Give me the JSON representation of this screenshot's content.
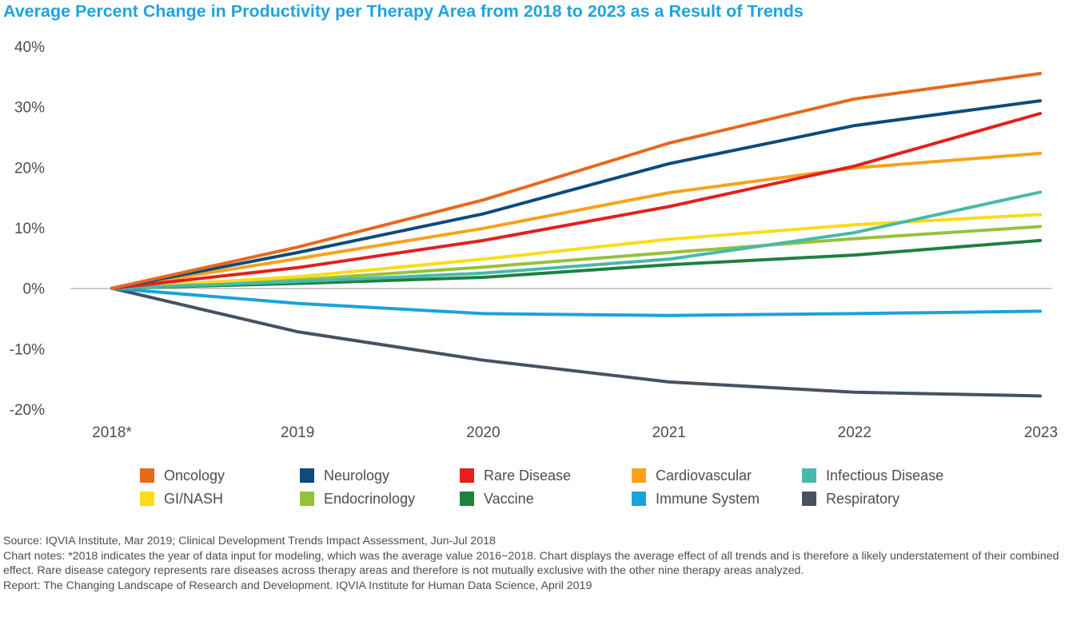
{
  "title": "Average Percent Change in Productivity per Therapy Area from 2018 to 2023 as a Result of Trends",
  "chart_data": {
    "type": "line",
    "title": "Average Percent Change in Productivity per Therapy Area from 2018 to 2023 as a Result of Trends",
    "xlabel": "",
    "ylabel": "",
    "categories": [
      "2018*",
      "2019",
      "2020",
      "2021",
      "2022",
      "2023"
    ],
    "ylim": [
      -20,
      40
    ],
    "yticks": [
      40,
      30,
      20,
      10,
      0,
      -10,
      -20
    ],
    "ytick_labels": [
      "40%",
      "30%",
      "20%",
      "10%",
      "0%",
      "-10%",
      "-20%"
    ],
    "grid": false,
    "legend_position": "bottom",
    "series": [
      {
        "name": "Oncology",
        "color": "#e8681c",
        "values": [
          0,
          6.8,
          14.6,
          24.0,
          31.3,
          35.5
        ]
      },
      {
        "name": "Neurology",
        "color": "#0e4b7b",
        "values": [
          0,
          5.9,
          12.3,
          20.6,
          26.9,
          31.0
        ]
      },
      {
        "name": "Rare Disease",
        "color": "#e3201d",
        "values": [
          0,
          3.4,
          7.9,
          13.5,
          20.2,
          28.9
        ]
      },
      {
        "name": "Cardiovascular",
        "color": "#f7a21b",
        "values": [
          0,
          4.9,
          9.9,
          15.8,
          19.9,
          22.3
        ]
      },
      {
        "name": "Infectious Disease",
        "color": "#48b9aa",
        "values": [
          0,
          1.1,
          2.5,
          4.8,
          9.2,
          15.9
        ]
      },
      {
        "name": "GI/NASH",
        "color": "#fbdc17",
        "values": [
          0,
          1.9,
          4.8,
          8.1,
          10.5,
          12.2
        ]
      },
      {
        "name": "Endocrinology",
        "color": "#96c23b",
        "values": [
          0,
          1.4,
          3.5,
          5.9,
          8.2,
          10.2
        ]
      },
      {
        "name": "Vaccine",
        "color": "#1d8140",
        "values": [
          0,
          0.8,
          1.8,
          3.9,
          5.5,
          7.9
        ]
      },
      {
        "name": "Immune System",
        "color": "#1aa2dc",
        "values": [
          0,
          -2.5,
          -4.2,
          -4.5,
          -4.2,
          -3.8
        ]
      },
      {
        "name": "Respiratory",
        "color": "#46525f",
        "values": [
          0,
          -7.2,
          -11.9,
          -15.5,
          -17.2,
          -17.8
        ]
      }
    ]
  },
  "legend": [
    {
      "label": "Oncology",
      "color": "#e8681c"
    },
    {
      "label": "Neurology",
      "color": "#0e4b7b"
    },
    {
      "label": "Rare Disease",
      "color": "#e3201d"
    },
    {
      "label": "Cardiovascular",
      "color": "#f7a21b"
    },
    {
      "label": "Infectious Disease",
      "color": "#48b9aa"
    },
    {
      "label": "GI/NASH",
      "color": "#fbdc17"
    },
    {
      "label": "Endocrinology",
      "color": "#96c23b"
    },
    {
      "label": "Vaccine",
      "color": "#1d8140"
    },
    {
      "label": "Immune System",
      "color": "#1aa2dc"
    },
    {
      "label": "Respiratory",
      "color": "#46525f"
    }
  ],
  "notes": {
    "source": "Source: IQVIA Institute, Mar 2019; Clinical Development Trends Impact Assessment, Jun-Jul 2018",
    "chart_notes": "Chart notes: *2018 indicates the year of data input for modeling, which was the average value 2016−2018. Chart displays the average effect of all trends and is therefore a likely understatement of their combined effect. Rare disease category represents rare diseases across therapy areas and therefore is not mutually exclusive with the other nine therapy areas analyzed.",
    "report": "Report: The Changing Landscape of Research and Development. IQVIA Institute for Human Data Science, April 2019"
  }
}
